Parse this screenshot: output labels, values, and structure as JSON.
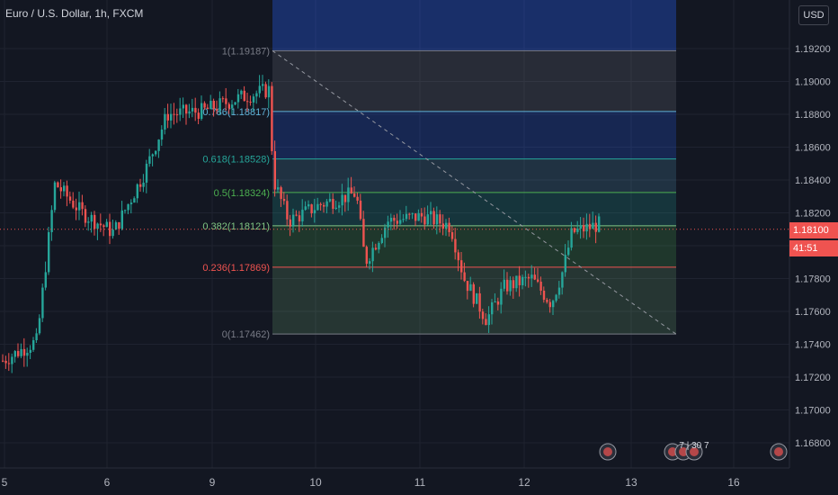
{
  "header": {
    "symbol_title": "Euro / U.S. Dollar, 1h, FXCM",
    "currency_label": "USD"
  },
  "price_axis": {
    "ticks": [
      "1.19200",
      "1.19000",
      "1.18800",
      "1.18600",
      "1.18400",
      "1.18200",
      "1.17800",
      "1.17600",
      "1.17400",
      "1.17200",
      "1.17000",
      "1.16800"
    ],
    "current_price": "1.18100",
    "countdown": "41:51"
  },
  "time_axis": {
    "labels": [
      "5",
      "6",
      "9",
      "10",
      "11",
      "12",
      "13",
      "16"
    ]
  },
  "fib_levels": [
    {
      "label": "1(1.19187)",
      "price": 1.19187,
      "color": "#787b86"
    },
    {
      "label": "0.786(1.18817)",
      "price": 1.18817,
      "color": "#5fb3d8"
    },
    {
      "label": "0.618(1.18528)",
      "price": 1.18528,
      "color": "#26a69a"
    },
    {
      "label": "0.5(1.18324)",
      "price": 1.18324,
      "color": "#4caf50"
    },
    {
      "label": "0.382(1.18121)",
      "price": 1.18121,
      "color": "#81c784"
    },
    {
      "label": "0.236(1.17869)",
      "price": 1.17869,
      "color": "#ef5350"
    },
    {
      "label": "0(1.17462)",
      "price": 1.17462,
      "color": "#787b86"
    }
  ],
  "events": {
    "label": "7 | 30 7"
  },
  "colors": {
    "background": "#131722",
    "up": "#26a69a",
    "down": "#ef5350",
    "price_line": "#ef5350"
  }
}
